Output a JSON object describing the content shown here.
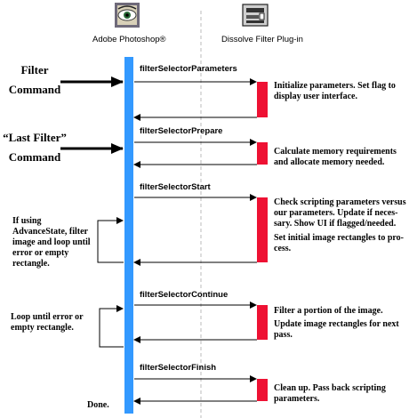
{
  "actors": {
    "host_name": "Adobe Photoshop®",
    "host_icon": "photoshop-eye-icon",
    "plugin_name": "Dissolve Filter Plug-in",
    "plugin_icon": "plugin-module-icon"
  },
  "triggers": {
    "filter_line1": "Filter",
    "filter_line2": "Command",
    "last_line1": "“Last Filter”",
    "last_line2": "Command"
  },
  "messages": [
    {
      "label": "filterSelectorParameters",
      "actions": [
        "Initialize parameters. Set flag to display user interface."
      ]
    },
    {
      "label": "filterSelectorPrepare",
      "actions": [
        "Calculate memory requirements and allocate memory needed."
      ]
    },
    {
      "label": "filterSelectorStart",
      "actions": [
        "Check scripting parameters versus our parameters. Update if neces-sary. Show UI if flagged/needed.",
        "Set initial image rectangles to pro-cess."
      ]
    },
    {
      "label": "filterSelectorContinue",
      "actions": [
        "Filter a portion of the image.",
        "Update image rectangles for next pass."
      ]
    },
    {
      "label": "filterSelectorFinish",
      "actions": [
        "Clean up. Pass back scripting parameters."
      ]
    }
  ],
  "loop_notes": {
    "advance_state": "If using AdvanceState, filter image and loop until error or empty rectangle.",
    "continue_loop": "Loop until error or empty rectangle."
  },
  "done_label": "Done.",
  "colors": {
    "host_bar": "#3399ff",
    "plugin_box": "#ee1133",
    "line": "#000000"
  }
}
